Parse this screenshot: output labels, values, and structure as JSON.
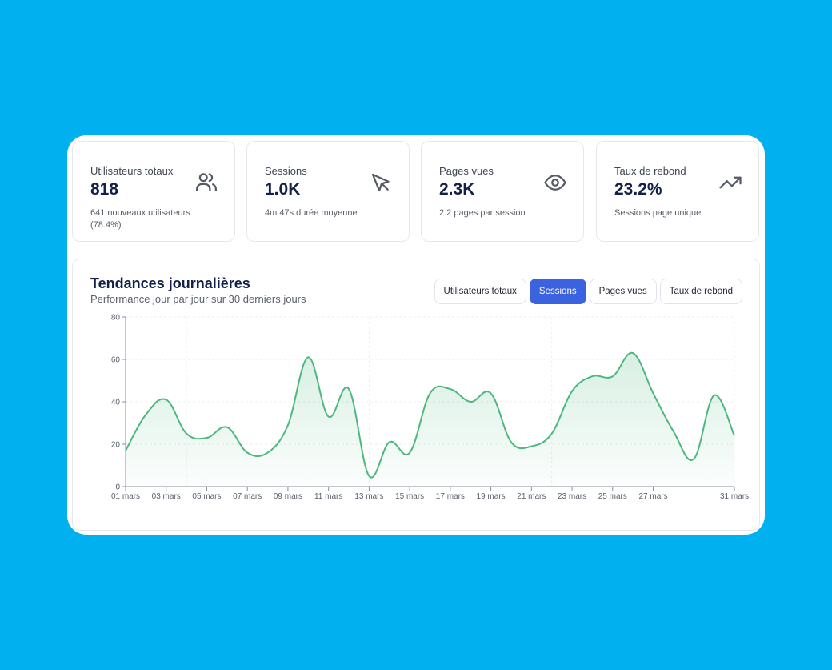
{
  "stats": [
    {
      "label": "Utilisateurs totaux",
      "value": "818",
      "sub": "641 nouveaux utilisateurs (78.4%)",
      "icon": "users-icon"
    },
    {
      "label": "Sessions",
      "value": "1.0K",
      "sub": "4m 47s durée moyenne",
      "icon": "cursor-icon"
    },
    {
      "label": "Pages vues",
      "value": "2.3K",
      "sub": "2.2 pages par session",
      "icon": "eye-icon"
    },
    {
      "label": "Taux de rebond",
      "value": "23.2%",
      "sub": "Sessions page unique",
      "icon": "trending-up-icon"
    }
  ],
  "trends": {
    "title": "Tendances journalières",
    "subtitle": "Performance jour par jour sur 30 derniers jours",
    "tabs": [
      {
        "label": "Utilisateurs totaux",
        "active": false
      },
      {
        "label": "Sessions",
        "active": true
      },
      {
        "label": "Pages vues",
        "active": false
      },
      {
        "label": "Taux de rebond",
        "active": false
      }
    ]
  },
  "colors": {
    "background": "#00b0ef",
    "accent": "#3b63e0",
    "line": "#4cb87e",
    "title": "#13204a"
  },
  "chart_data": {
    "type": "area",
    "title": "Tendances journalières",
    "subtitle": "Performance jour par jour sur 30 derniers jours",
    "series_name": "Sessions",
    "x": [
      "01 mars",
      "02 mars",
      "03 mars",
      "04 mars",
      "05 mars",
      "06 mars",
      "07 mars",
      "08 mars",
      "09 mars",
      "10 mars",
      "11 mars",
      "12 mars",
      "13 mars",
      "14 mars",
      "15 mars",
      "16 mars",
      "17 mars",
      "18 mars",
      "19 mars",
      "20 mars",
      "21 mars",
      "22 mars",
      "23 mars",
      "24 mars",
      "25 mars",
      "26 mars",
      "27 mars",
      "28 mars",
      "29 mars",
      "30 mars",
      "31 mars"
    ],
    "values": [
      17,
      34,
      41,
      25,
      23,
      28,
      16,
      16,
      29,
      61,
      33,
      46,
      5,
      21,
      16,
      44,
      46,
      40,
      44,
      21,
      19,
      25,
      45,
      52,
      52,
      63,
      44,
      26,
      13,
      43,
      24
    ],
    "xtick_labels": [
      "01 mars",
      "03 mars",
      "05 mars",
      "07 mars",
      "09 mars",
      "11 mars",
      "13 mars",
      "15 mars",
      "17 mars",
      "19 mars",
      "21 mars",
      "23 mars",
      "25 mars",
      "27 mars",
      "31 mars"
    ],
    "xtick_indices": [
      0,
      2,
      4,
      6,
      8,
      10,
      12,
      14,
      16,
      18,
      20,
      22,
      24,
      26,
      30
    ],
    "yticks": [
      0,
      20,
      40,
      60,
      80
    ],
    "ylim": [
      0,
      80
    ],
    "xlabel": "",
    "ylabel": "",
    "grid": true,
    "legend": false
  }
}
